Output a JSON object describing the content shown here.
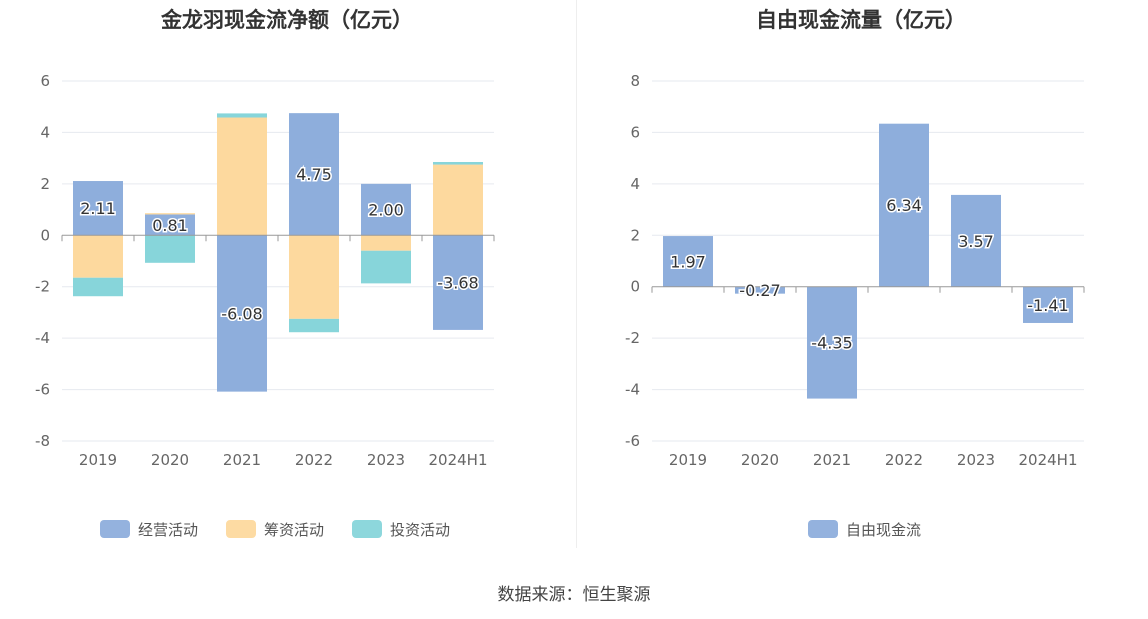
{
  "chart_data": [
    {
      "type": "bar",
      "stacked": true,
      "title": "金龙羽现金流净额（亿元）",
      "categories": [
        "2019",
        "2020",
        "2021",
        "2022",
        "2023",
        "2024H1"
      ],
      "ylim": [
        -8,
        6
      ],
      "yticks": [
        -8,
        -6,
        -4,
        -2,
        0,
        2,
        4,
        6
      ],
      "grid": true,
      "legend_position": "bottom",
      "series": [
        {
          "name": "经营活动",
          "color": "#8eaedc",
          "values": [
            2.11,
            0.81,
            -6.08,
            4.75,
            2.0,
            -3.68
          ],
          "labels": [
            "2.11",
            "0.81",
            "-6.08",
            "4.75",
            "2.00",
            "-3.68"
          ]
        },
        {
          "name": "筹资活动",
          "color": "#fdd99e",
          "values": [
            -1.65,
            0.05,
            4.58,
            -3.25,
            -0.6,
            2.75
          ],
          "labels": []
        },
        {
          "name": "投资活动",
          "color": "#87d5da",
          "values": [
            -0.72,
            -1.07,
            0.16,
            -0.52,
            -1.27,
            0.1
          ],
          "labels": []
        }
      ]
    },
    {
      "type": "bar",
      "title": "自由现金流量（亿元）",
      "categories": [
        "2019",
        "2020",
        "2021",
        "2022",
        "2023",
        "2024H1"
      ],
      "ylim": [
        -6,
        8
      ],
      "yticks": [
        -6,
        -4,
        -2,
        0,
        2,
        4,
        6,
        8
      ],
      "grid": true,
      "legend_position": "bottom",
      "series": [
        {
          "name": "自由现金流",
          "color": "#8eaedc",
          "values": [
            1.97,
            -0.27,
            -4.35,
            6.34,
            3.57,
            -1.41
          ],
          "labels": [
            "1.97",
            "-0.27",
            "-4.35",
            "6.34",
            "3.57",
            "-1.41"
          ]
        }
      ]
    }
  ],
  "footer": {
    "source": "数据来源：恒生聚源"
  }
}
